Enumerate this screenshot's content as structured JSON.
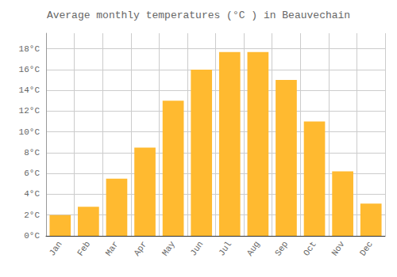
{
  "chart_data": {
    "type": "bar",
    "title": "Average monthly temperatures (°C ) in Beauvechain",
    "categories": [
      "Jan",
      "Feb",
      "Mar",
      "Apr",
      "May",
      "Jun",
      "Jul",
      "Aug",
      "Sep",
      "Oct",
      "Nov",
      "Dec"
    ],
    "values": [
      2.0,
      2.8,
      5.5,
      8.5,
      13.0,
      16.0,
      17.7,
      17.7,
      15.0,
      11.0,
      6.2,
      3.1
    ],
    "color": "#FFBA30",
    "ylim": [
      0,
      19.5
    ],
    "yticks": [
      {
        "value": 0,
        "label": "0°C"
      },
      {
        "value": 2,
        "label": "2°C"
      },
      {
        "value": 4,
        "label": "4°C"
      },
      {
        "value": 6,
        "label": "6°C"
      },
      {
        "value": 8,
        "label": "8°C"
      },
      {
        "value": 10,
        "label": "10°C"
      },
      {
        "value": 12,
        "label": "12°C"
      },
      {
        "value": 14,
        "label": "14°C"
      },
      {
        "value": 16,
        "label": "16°C"
      },
      {
        "value": 18,
        "label": "18°C"
      }
    ],
    "grid": true
  }
}
